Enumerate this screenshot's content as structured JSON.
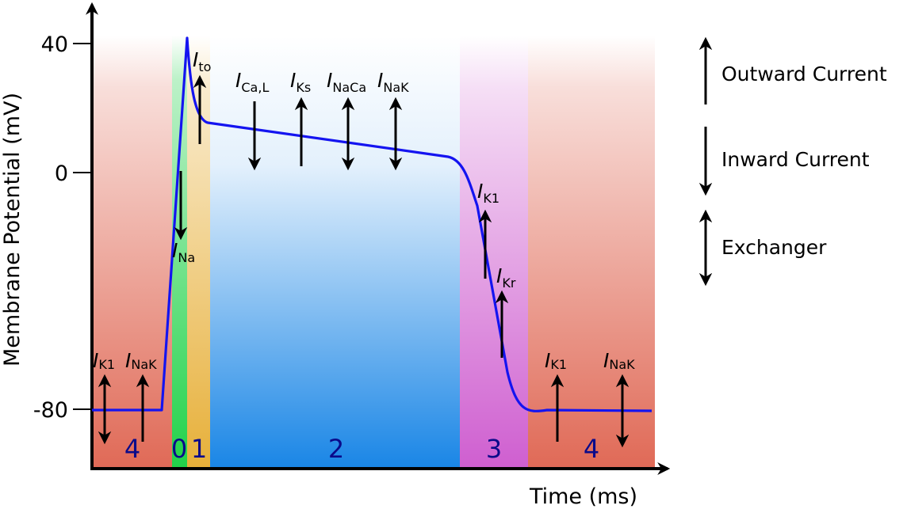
{
  "axes": {
    "y_label": "Membrane Potential (mV)",
    "x_label": "Time (ms)",
    "y_ticks": [
      "40",
      "0",
      "-80"
    ],
    "y_tick_values": [
      40,
      0,
      -80
    ]
  },
  "phases": [
    {
      "label": "4",
      "color": "#e06a57"
    },
    {
      "label": "0",
      "color": "#22d24a"
    },
    {
      "label": "1",
      "color": "#e7b03a"
    },
    {
      "label": "2",
      "color": "#1a86e6"
    },
    {
      "label": "3",
      "color": "#cf5fd0"
    },
    {
      "label": "4",
      "color": "#e06a57"
    }
  ],
  "trace_color": "#1414f0",
  "currents": {
    "ik1_left": {
      "main": "I",
      "sub": "K1",
      "type": "exchanger"
    },
    "inak_left": {
      "main": "I",
      "sub": "NaK",
      "type": "outward"
    },
    "ina": {
      "main": "I",
      "sub": "Na",
      "type": "inward"
    },
    "ito": {
      "main": "I",
      "sub": "to",
      "type": "outward"
    },
    "ical": {
      "main": "I",
      "sub": "Ca,L",
      "type": "inward"
    },
    "iks": {
      "main": "I",
      "sub": "Ks",
      "type": "outward"
    },
    "inaca": {
      "main": "I",
      "sub": "NaCa",
      "type": "exchanger"
    },
    "inak_mid": {
      "main": "I",
      "sub": "NaK",
      "type": "exchanger"
    },
    "ik1_mid": {
      "main": "I",
      "sub": "K1",
      "type": "outward"
    },
    "ikr": {
      "main": "I",
      "sub": "Kr",
      "type": "outward"
    },
    "ik1_right": {
      "main": "I",
      "sub": "K1",
      "type": "outward"
    },
    "inak_right": {
      "main": "I",
      "sub": "NaK",
      "type": "exchanger"
    }
  },
  "legend": [
    {
      "label": "Outward Current",
      "icon": "arrow-up-icon"
    },
    {
      "label": "Inward Current",
      "icon": "arrow-down-icon"
    },
    {
      "label": "Exchanger",
      "icon": "double-arrow-icon"
    }
  ]
}
